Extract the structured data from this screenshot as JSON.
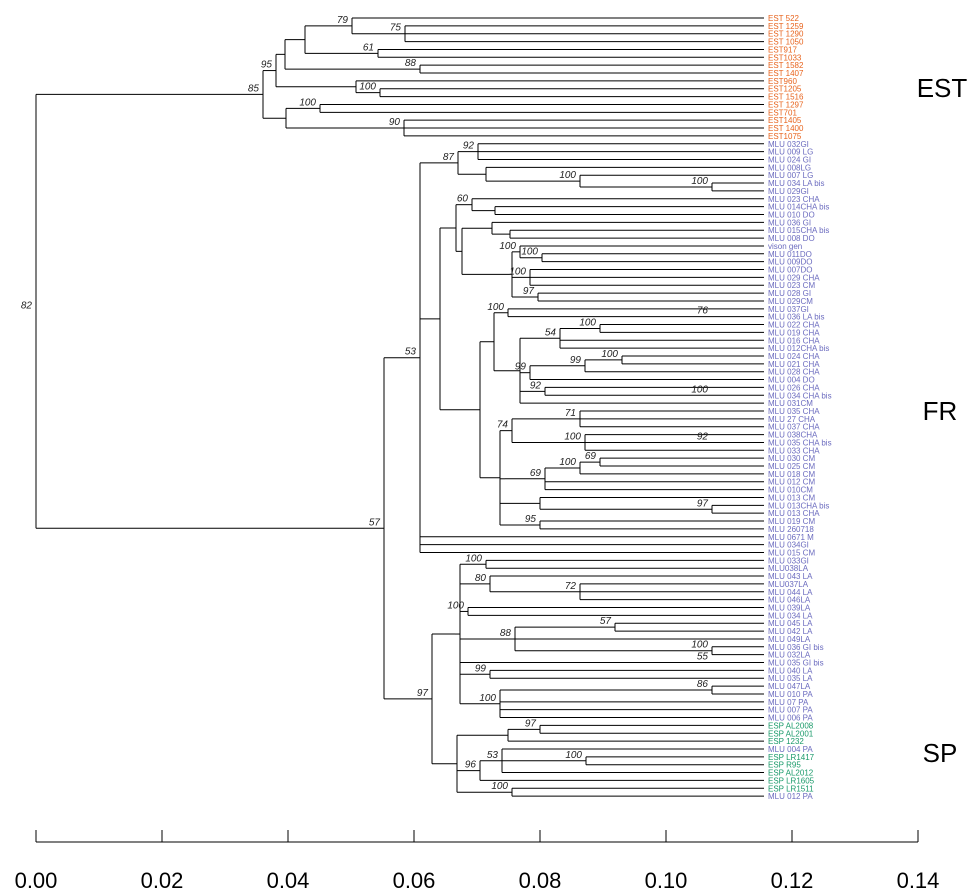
{
  "colors": {
    "EST": "#e8641e",
    "FR": "#6b6bbf",
    "SP": "#1a9a6a"
  },
  "groups": [
    {
      "id": "EST",
      "label": "EST"
    },
    {
      "id": "FR",
      "label": "FR"
    },
    {
      "id": "SP",
      "label": "SP"
    }
  ],
  "axis": {
    "ticks": [
      0.0,
      0.02,
      0.04,
      0.06,
      0.08,
      0.1,
      0.12,
      0.14
    ],
    "tick_labels": [
      "0.00",
      "0.02",
      "0.04",
      "0.06",
      "0.08",
      "0.10",
      "0.12",
      "0.14"
    ]
  },
  "leaves": [
    {
      "label": "EST 522",
      "group": "EST"
    },
    {
      "label": "EST 1259",
      "group": "EST"
    },
    {
      "label": "EST 1290",
      "group": "EST"
    },
    {
      "label": "EST 1050",
      "group": "EST"
    },
    {
      "label": "EST917",
      "group": "EST"
    },
    {
      "label": "EST1033",
      "group": "EST"
    },
    {
      "label": "EST 1582",
      "group": "EST"
    },
    {
      "label": "EST 1407",
      "group": "EST"
    },
    {
      "label": "EST960",
      "group": "EST"
    },
    {
      "label": "EST1205",
      "group": "EST"
    },
    {
      "label": "EST 1516",
      "group": "EST"
    },
    {
      "label": "EST 1297",
      "group": "EST"
    },
    {
      "label": "EST701",
      "group": "EST"
    },
    {
      "label": "EST1405",
      "group": "EST"
    },
    {
      "label": "EST 1400",
      "group": "EST"
    },
    {
      "label": "EST1075",
      "group": "EST"
    },
    {
      "label": "MLU 032GI",
      "group": "FR"
    },
    {
      "label": "MLU 009 LG",
      "group": "FR"
    },
    {
      "label": "MLU 024 GI",
      "group": "FR"
    },
    {
      "label": "MLU 008LG",
      "group": "FR"
    },
    {
      "label": "MLU 007 LG",
      "group": "FR"
    },
    {
      "label": "MLU 034 LA bis",
      "group": "FR"
    },
    {
      "label": "MLU 029GI",
      "group": "FR"
    },
    {
      "label": "MLU 023 CHA",
      "group": "FR"
    },
    {
      "label": "MLU 014CHA bis",
      "group": "FR"
    },
    {
      "label": "MLU 010 DO",
      "group": "FR"
    },
    {
      "label": "MLU 036 GI",
      "group": "FR"
    },
    {
      "label": "MLU 015CHA bis",
      "group": "FR"
    },
    {
      "label": "MLU 008 DO",
      "group": "FR"
    },
    {
      "label": "vison gen",
      "group": "FR"
    },
    {
      "label": "MLU 011DO",
      "group": "FR"
    },
    {
      "label": "MLU 009DO",
      "group": "FR"
    },
    {
      "label": "MLU 007DO",
      "group": "FR"
    },
    {
      "label": "MLU 029 CHA",
      "group": "FR"
    },
    {
      "label": "MLU 023 CM",
      "group": "FR"
    },
    {
      "label": "MLU 028 GI",
      "group": "FR"
    },
    {
      "label": "MLU 029CM",
      "group": "FR"
    },
    {
      "label": "MLU 037GI",
      "group": "FR"
    },
    {
      "label": "MLU 036 LA bis",
      "group": "FR"
    },
    {
      "label": "MLU 022 CHA",
      "group": "FR"
    },
    {
      "label": "MLU 019 CHA",
      "group": "FR"
    },
    {
      "label": "MLU 016 CHA",
      "group": "FR"
    },
    {
      "label": "MLU 012CHA bis",
      "group": "FR"
    },
    {
      "label": "MLU 024 CHA",
      "group": "FR"
    },
    {
      "label": "MLU 021 CHA",
      "group": "FR"
    },
    {
      "label": "MLU 028 CHA",
      "group": "FR"
    },
    {
      "label": "MLU 004 DO",
      "group": "FR"
    },
    {
      "label": "MLU 026 CHA",
      "group": "FR"
    },
    {
      "label": "MLU 034 CHA bis",
      "group": "FR"
    },
    {
      "label": "MLU 031CM",
      "group": "FR"
    },
    {
      "label": "MLU 035 CHA",
      "group": "FR"
    },
    {
      "label": "MLU 27 CHA",
      "group": "FR"
    },
    {
      "label": "MLU 037 CHA",
      "group": "FR"
    },
    {
      "label": "MLU 038CHA",
      "group": "FR"
    },
    {
      "label": "MLU 035 CHA bis",
      "group": "FR"
    },
    {
      "label": "MLU 033 CHA",
      "group": "FR"
    },
    {
      "label": "MLU 030 CM",
      "group": "FR"
    },
    {
      "label": "MLU 025 CM",
      "group": "FR"
    },
    {
      "label": "MLU 018 CM",
      "group": "FR"
    },
    {
      "label": "MLU 012 CM",
      "group": "FR"
    },
    {
      "label": "MLU 010CM",
      "group": "FR"
    },
    {
      "label": "MLU 013 CM",
      "group": "FR"
    },
    {
      "label": "MLU 013CHA bis",
      "group": "FR"
    },
    {
      "label": "MLU 013 CHA",
      "group": "FR"
    },
    {
      "label": "MLU 019 CM",
      "group": "FR"
    },
    {
      "label": "MLU 260718",
      "group": "FR"
    },
    {
      "label": "MLU 0671 M",
      "group": "FR"
    },
    {
      "label": "MLU 034GI",
      "group": "FR"
    },
    {
      "label": "MLU 015 CM",
      "group": "FR"
    },
    {
      "label": "MLU 033GI",
      "group": "FR"
    },
    {
      "label": "MLU038LA",
      "group": "FR"
    },
    {
      "label": "MLU 043 LA",
      "group": "FR"
    },
    {
      "label": "MLU037LA",
      "group": "FR"
    },
    {
      "label": "MLU 044 LA",
      "group": "FR"
    },
    {
      "label": "MLU 046LA",
      "group": "FR"
    },
    {
      "label": "MLU 039LA",
      "group": "FR"
    },
    {
      "label": "MLU 034 LA",
      "group": "FR"
    },
    {
      "label": "MLU 045 LA",
      "group": "FR"
    },
    {
      "label": "MLU 042 LA",
      "group": "FR"
    },
    {
      "label": "MLU 049LA",
      "group": "FR"
    },
    {
      "label": "MLU 036 GI bis",
      "group": "FR"
    },
    {
      "label": "MLU 032LA",
      "group": "FR"
    },
    {
      "label": "MLU 035 GI bis",
      "group": "FR"
    },
    {
      "label": "MLU 040 LA",
      "group": "FR"
    },
    {
      "label": "MLU 035 LA",
      "group": "FR"
    },
    {
      "label": "MLU 047LA",
      "group": "FR"
    },
    {
      "label": "MLU 010 PA",
      "group": "FR"
    },
    {
      "label": "MLU 07 PA",
      "group": "FR"
    },
    {
      "label": "MLU 007 PA",
      "group": "FR"
    },
    {
      "label": "MLU 006 PA",
      "group": "FR"
    },
    {
      "label": "ESP AL2008",
      "group": "SP"
    },
    {
      "label": "ESP AL2001",
      "group": "SP"
    },
    {
      "label": "ESP 1232",
      "group": "SP"
    },
    {
      "label": "MLU 004 PA",
      "group": "FR"
    },
    {
      "label": "ESP LR1417",
      "group": "SP"
    },
    {
      "label": "ESP R95",
      "group": "SP"
    },
    {
      "label": "ESP AL2012",
      "group": "SP"
    },
    {
      "label": "ESP LR1605",
      "group": "SP"
    },
    {
      "label": "ESP LR1511",
      "group": "SP"
    },
    {
      "label": "MLU 012 PA",
      "group": "FR"
    }
  ],
  "support_values": [
    "75",
    "79",
    "61",
    "88",
    "100",
    "95",
    "100",
    "90",
    "85",
    "92",
    "100",
    "100",
    "87",
    "60",
    "100",
    "100",
    "100",
    "97",
    "76",
    "100",
    "100",
    "54",
    "100",
    "99",
    "99",
    "100",
    "92",
    "71",
    "92",
    "100",
    "74",
    "69",
    "100",
    "69",
    "97",
    "95",
    "53",
    "100",
    "72",
    "80",
    "100",
    "57",
    "100",
    "88",
    "55",
    "99",
    "86",
    "100",
    "97",
    "100",
    "53",
    "96",
    "100",
    "97",
    "57",
    "82",
    "74",
    "97",
    "67",
    "97"
  ]
}
